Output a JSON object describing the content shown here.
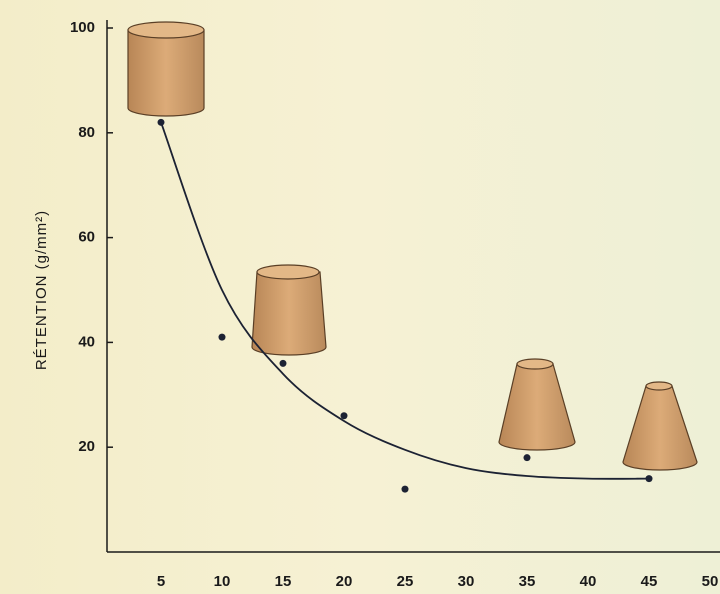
{
  "chart_data": {
    "type": "scatter",
    "y_label": "RÉTENTION (g/mm²)",
    "xlim": [
      0,
      50
    ],
    "ylim": [
      0,
      100
    ],
    "xticks": [
      5,
      10,
      15,
      20,
      25,
      30,
      35,
      40,
      45,
      50
    ],
    "yticks": [
      20,
      40,
      60,
      80,
      100
    ],
    "series": [
      {
        "type": "scatter",
        "color": "#1c2233",
        "x": [
          5,
          10,
          15,
          20,
          25,
          35,
          45
        ],
        "values": [
          82,
          41,
          36,
          26,
          12,
          18,
          14
        ]
      },
      {
        "type": "line",
        "color": "#1c2233",
        "x": [
          5,
          10,
          15,
          20,
          25,
          30,
          35,
          40,
          45
        ],
        "values": [
          82,
          50,
          34,
          25,
          19.5,
          16,
          14.5,
          14,
          14
        ]
      }
    ]
  }
}
